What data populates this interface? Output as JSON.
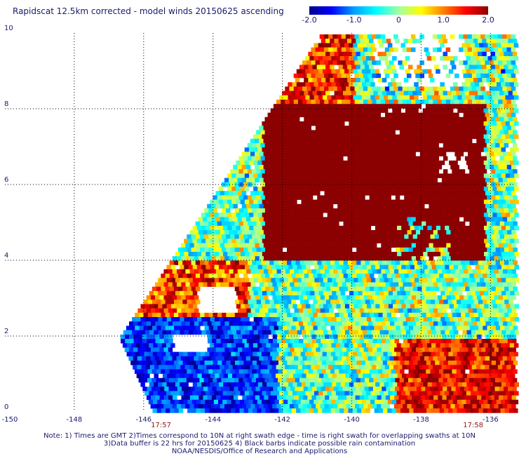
{
  "title": "Rapidscat 12.5km corrected - model winds 20150625 ascending",
  "colorbar": {
    "ticks": [
      "-2.0",
      "-1.0",
      "0",
      "1.0",
      "2.0"
    ],
    "tick_values": [
      -2,
      -1,
      0,
      1,
      2
    ],
    "range": [
      -2,
      2
    ],
    "colors": [
      "#00008b",
      "#0000ff",
      "#00a0ff",
      "#00ffff",
      "#a0ffa0",
      "#ffff00",
      "#ff8000",
      "#ff0000",
      "#8b0000"
    ]
  },
  "axes": {
    "x_ticks": [
      "-150",
      "-148",
      "-146",
      "-144",
      "-142",
      "-140",
      "-138",
      "-136"
    ],
    "x_values": [
      -150,
      -148,
      -146,
      -144,
      -142,
      -140,
      -138,
      -136
    ],
    "y_ticks": [
      "0",
      "2",
      "4",
      "6",
      "8",
      "10"
    ],
    "y_values": [
      0,
      2,
      4,
      6,
      8,
      10
    ],
    "lon_range": [
      -150,
      -135.3
    ],
    "lat_range": [
      0,
      10
    ]
  },
  "times": [
    {
      "label": "17:57",
      "lon": -145.5
    },
    {
      "label": "17:58",
      "lon": -136.5
    }
  ],
  "notes": [
    "Note: 1) Times are GMT 2)Times correspond to 10N at right swath edge - time is right swath for overlapping swaths at 10N",
    "3)Data buffer is 22 hrs for 20150625 4) Black barbs indicate possible rain contamination",
    "NOAA/NESDIS/Office of Research and Applications"
  ]
}
